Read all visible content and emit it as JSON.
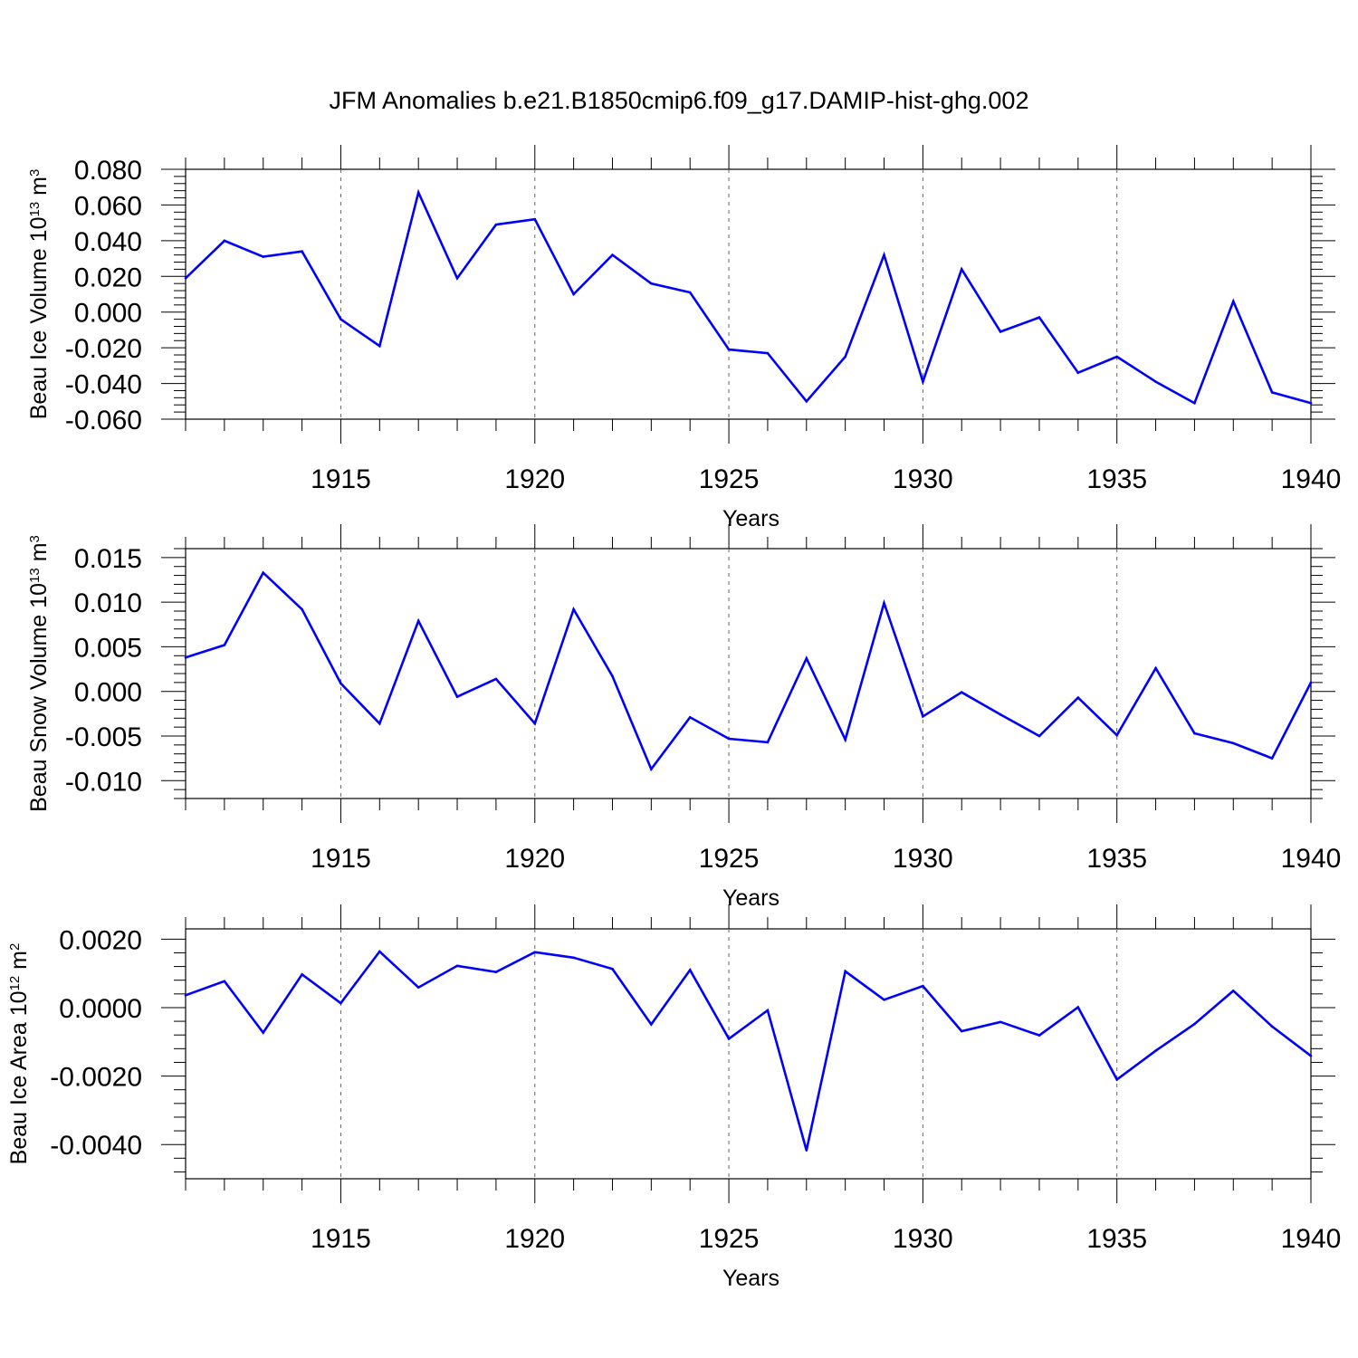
{
  "title": "JFM Anomalies b.e21.B1850cmip6.f09_g17.DAMIP-hist-ghg.002",
  "colors": {
    "series": "#0000ff",
    "axis": "#000000",
    "grid": "#666666"
  },
  "chart_data": [
    {
      "type": "line",
      "ylabel_main": "Beau Ice Volume 10",
      "ylabel_exp": "13",
      "ylabel_unit": " m",
      "ylabel_unit_exp": "3",
      "xlabel": "Years",
      "xlim": [
        1911,
        1940
      ],
      "ylim": [
        -0.06,
        0.08
      ],
      "yticks": [
        0.08,
        0.06,
        0.04,
        0.02,
        0.0,
        -0.02,
        -0.04,
        -0.06
      ],
      "ytick_labels": [
        "0.080",
        "0.060",
        "0.040",
        "0.020",
        "0.000",
        "-0.020",
        "-0.040",
        "-0.060"
      ],
      "xticks": [
        1915,
        1920,
        1925,
        1930,
        1935,
        1940
      ],
      "xtick_labels": [
        "1915",
        "1920",
        "1925",
        "1930",
        "1935",
        "1940"
      ],
      "x": [
        1911,
        1912,
        1913,
        1914,
        1915,
        1916,
        1917,
        1918,
        1919,
        1920,
        1921,
        1922,
        1923,
        1924,
        1925,
        1926,
        1927,
        1928,
        1929,
        1930,
        1931,
        1932,
        1933,
        1934,
        1935,
        1936,
        1937,
        1938,
        1939,
        1940
      ],
      "values": [
        0.019,
        0.04,
        0.031,
        0.034,
        -0.004,
        -0.019,
        0.067,
        0.019,
        0.049,
        0.052,
        0.01,
        0.032,
        0.016,
        0.011,
        -0.021,
        -0.023,
        -0.05,
        -0.025,
        0.032,
        -0.039,
        0.024,
        -0.011,
        -0.003,
        -0.034,
        -0.025,
        -0.039,
        -0.051,
        0.006,
        -0.045,
        -0.051
      ]
    },
    {
      "type": "line",
      "ylabel_main": "Beau Snow Volume 10",
      "ylabel_exp": "13",
      "ylabel_unit": " m",
      "ylabel_unit_exp": "3",
      "xlabel": "Years",
      "xlim": [
        1911,
        1940
      ],
      "ylim": [
        -0.012,
        0.016
      ],
      "yticks": [
        0.015,
        0.01,
        0.005,
        0.0,
        -0.005,
        -0.01
      ],
      "ytick_labels": [
        "0.015",
        "0.010",
        "0.005",
        "0.000",
        "-0.005",
        "-0.010"
      ],
      "xticks": [
        1915,
        1920,
        1925,
        1930,
        1935,
        1940
      ],
      "xtick_labels": [
        "1915",
        "1920",
        "1925",
        "1930",
        "1935",
        "1940"
      ],
      "x": [
        1911,
        1912,
        1913,
        1914,
        1915,
        1916,
        1917,
        1918,
        1919,
        1920,
        1921,
        1922,
        1923,
        1924,
        1925,
        1926,
        1927,
        1928,
        1929,
        1930,
        1931,
        1932,
        1933,
        1934,
        1935,
        1936,
        1937,
        1938,
        1939,
        1940
      ],
      "values": [
        0.0038,
        0.0052,
        0.0133,
        0.0092,
        0.0009,
        -0.0036,
        0.0079,
        -0.0006,
        0.0014,
        -0.0036,
        0.0092,
        0.0017,
        -0.0087,
        -0.0029,
        -0.0053,
        -0.0057,
        0.0037,
        -0.0054,
        0.0099,
        -0.0028,
        -0.0001,
        -0.0026,
        -0.005,
        -0.0007,
        -0.0049,
        0.0026,
        -0.0047,
        -0.0058,
        -0.0075,
        0.001
      ]
    },
    {
      "type": "line",
      "ylabel_main": "Beau Ice Area 10",
      "ylabel_exp": "12",
      "ylabel_unit": " m",
      "ylabel_unit_exp": "2",
      "xlabel": "Years",
      "xlim": [
        1911,
        1940
      ],
      "ylim": [
        -0.005,
        0.0023
      ],
      "yticks": [
        0.002,
        0.0,
        -0.002,
        -0.004
      ],
      "ytick_labels": [
        "0.0020",
        "0.0000",
        "-0.0020",
        "-0.0040"
      ],
      "xticks": [
        1915,
        1920,
        1925,
        1930,
        1935,
        1940
      ],
      "xtick_labels": [
        "1915",
        "1920",
        "1925",
        "1930",
        "1935",
        "1940"
      ],
      "x": [
        1911,
        1912,
        1913,
        1914,
        1915,
        1916,
        1917,
        1918,
        1919,
        1920,
        1921,
        1922,
        1923,
        1924,
        1925,
        1926,
        1927,
        1928,
        1929,
        1930,
        1931,
        1932,
        1933,
        1934,
        1935,
        1936,
        1937,
        1938,
        1939,
        1940
      ],
      "values": [
        0.00036,
        0.00077,
        -0.00073,
        0.00097,
        0.00013,
        0.00164,
        0.00059,
        0.00122,
        0.00104,
        0.00162,
        0.00146,
        0.00113,
        -0.00049,
        0.0011,
        -0.00091,
        -8e-05,
        -0.00417,
        0.00106,
        0.00023,
        0.00063,
        -0.00069,
        -0.00042,
        -0.00081,
        1e-05,
        -0.0021,
        -0.00126,
        -0.00048,
        0.00049,
        -0.00055,
        -0.00141
      ]
    }
  ]
}
